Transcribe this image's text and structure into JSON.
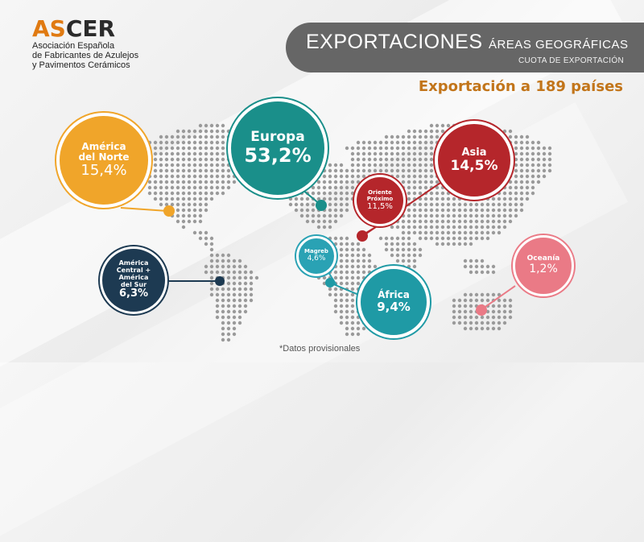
{
  "logo": {
    "mark_as": "AS",
    "mark_cer": "CER",
    "subtitle_1": "Asociación Española",
    "subtitle_2": "de Fabricantes de Azulejos",
    "subtitle_3": "y Pavimentos Cerámicos"
  },
  "header": {
    "title_main": "EXPORTACIONES",
    "title_small": "ÁREAS GEOGRÁFICAS",
    "subtitle": "CUOTA DE EXPORTACIÓN"
  },
  "headline": "Exportación a 189 países",
  "footnote": "*Datos provisionales",
  "colors": {
    "europa": "#1a8f8a",
    "america_norte": "#f0a52a",
    "america_central_sur": "#1d3a52",
    "asia": "#b5262b",
    "oriente_proximo": "#b5262b",
    "magreb": "#2aa2b4",
    "africa": "#1f9aa5",
    "oceania": "#ea7a86",
    "accent": "#c2751a",
    "header": "#666666"
  },
  "chart_data": {
    "type": "pie",
    "regions": [
      {
        "name": "Europa",
        "value": 53.2,
        "label": "53,2%"
      },
      {
        "name": "América del Norte",
        "value": 15.4,
        "label": "15,4%"
      },
      {
        "name": "Asia",
        "value": 14.5,
        "label": "14,5%"
      },
      {
        "name": "Oriente Próximo",
        "value": 11.5,
        "label": "11,5%"
      },
      {
        "name": "África",
        "value": 9.4,
        "label": "9,4%"
      },
      {
        "name": "América Central + América del Sur",
        "value": 6.3,
        "label": "6,3%"
      },
      {
        "name": "Magreb",
        "value": 4.6,
        "label": "4,6%"
      },
      {
        "name": "Oceanía",
        "value": 1.2,
        "label": "1,2%"
      }
    ]
  },
  "bubbles": {
    "america_norte": {
      "name_1": "América",
      "name_2": "del Norte",
      "value": "15,4%"
    },
    "europa": {
      "name": "Europa",
      "value": "53,2%"
    },
    "asia": {
      "name": "Asia",
      "value": "14,5%"
    },
    "oriente": {
      "name_1": "Oriente",
      "name_2": "Próximo",
      "value": "11,5%"
    },
    "america_sur": {
      "name_1": "América",
      "name_2": "Central +",
      "name_3": "América",
      "name_4": "del Sur",
      "value": "6,3%"
    },
    "magreb": {
      "name": "Magreb",
      "value": "4,6%"
    },
    "africa": {
      "name": "África",
      "value": "9,4%"
    },
    "oceania": {
      "name": "Oceanía",
      "value": "1,2%"
    }
  }
}
